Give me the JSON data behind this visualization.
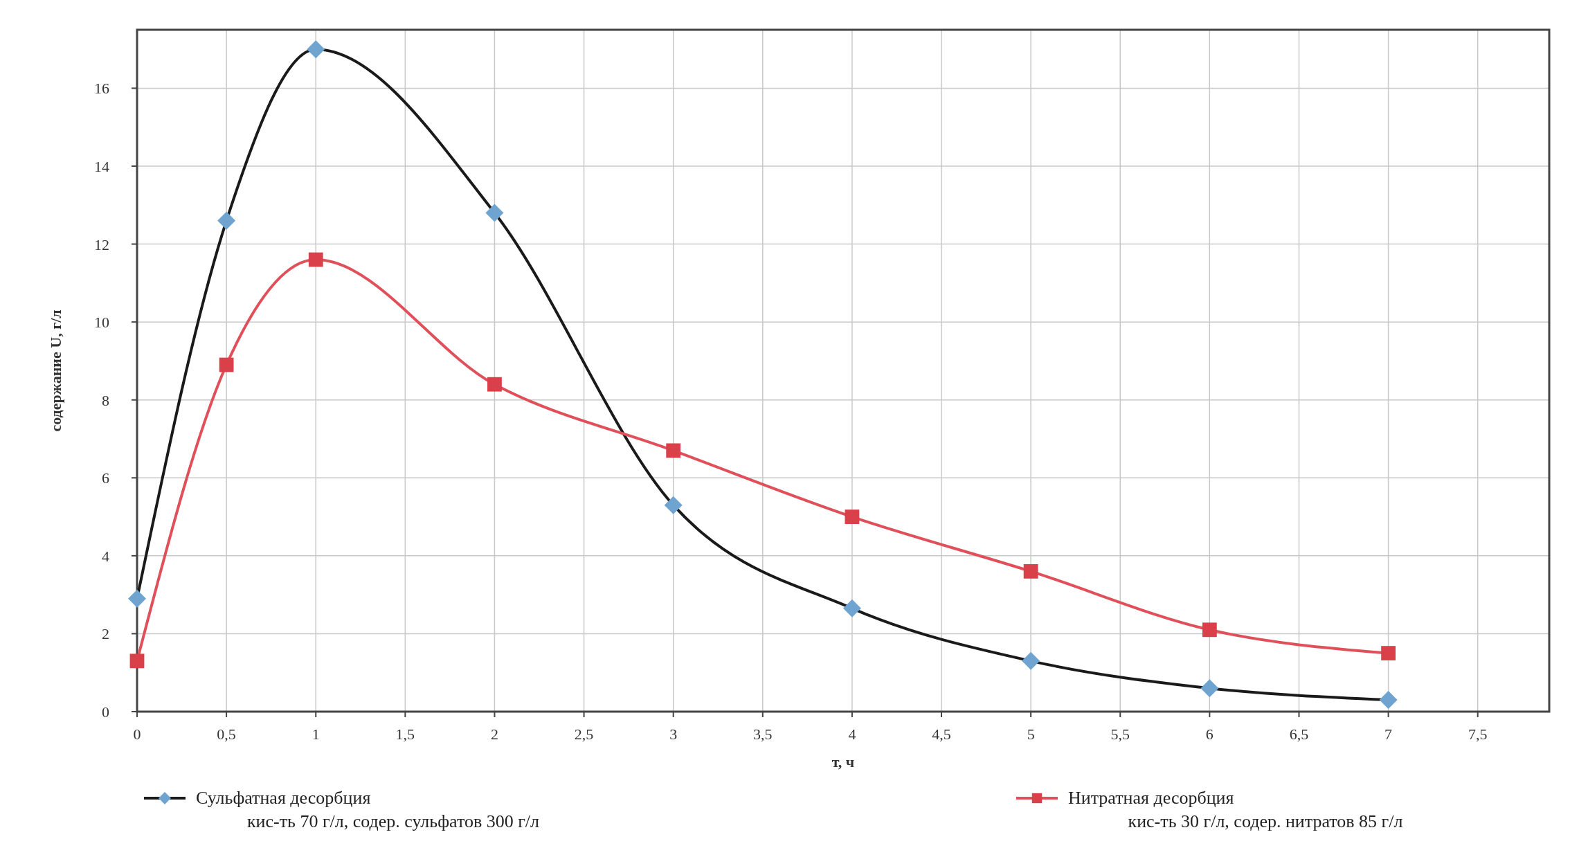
{
  "chart_data": {
    "type": "line",
    "xlabel": "т, ч",
    "ylabel": "содержание U, г/л",
    "x": [
      0,
      0.5,
      1,
      2,
      3,
      4,
      5,
      6,
      7
    ],
    "series": [
      {
        "name": "Сульфатная десорбция\nкис-ть 70 г/л, содер. сульфатов 300 г/л",
        "color": "#1a1a1a",
        "colors": [
          "#6fa3d0",
          "#6fa3d0",
          "#6fa3d0",
          "#6fa3d0",
          "#6fa3d0",
          "#6fa3d0",
          "#6fa3d0",
          "#6fa3d0",
          "#6fa3d0"
        ],
        "marker": "diamond",
        "values": [
          2.9,
          12.6,
          17.0,
          12.8,
          5.3,
          2.65,
          1.3,
          0.6,
          0.3
        ]
      },
      {
        "name": "Нитратная десорбция\nкис-ть 30 г/л, содер. нитратов 85 г/л",
        "color": "#e0505a",
        "colors": [
          "#d9404a",
          "#d9404a",
          "#d9404a",
          "#d9404a",
          "#d9404a",
          "#d9404a",
          "#d9404a",
          "#d9404a",
          "#d9404a"
        ],
        "marker": "square",
        "values": [
          1.3,
          8.9,
          11.6,
          8.4,
          6.7,
          5.0,
          3.6,
          2.1,
          1.5
        ]
      }
    ],
    "xlim": [
      0,
      7.9
    ],
    "ylim": [
      0,
      17.5
    ],
    "xticks": [
      0,
      {
        "value": 0.5,
        "label": "0,5"
      },
      1,
      {
        "value": 1.5,
        "label": "1,5"
      },
      2,
      {
        "value": 2.5,
        "label": "2,5"
      },
      3,
      {
        "value": 3.5,
        "label": "3,5"
      },
      4,
      {
        "value": 4.5,
        "label": "4,5"
      },
      5,
      {
        "value": 5.5,
        "label": "5,5"
      },
      6,
      {
        "value": 6.5,
        "label": "6,5"
      },
      7,
      {
        "value": 7.5,
        "label": "7,5"
      }
    ],
    "yticks": [
      0,
      2,
      4,
      6,
      8,
      10,
      12,
      14,
      16
    ],
    "grid": true,
    "legend": "bottom"
  }
}
